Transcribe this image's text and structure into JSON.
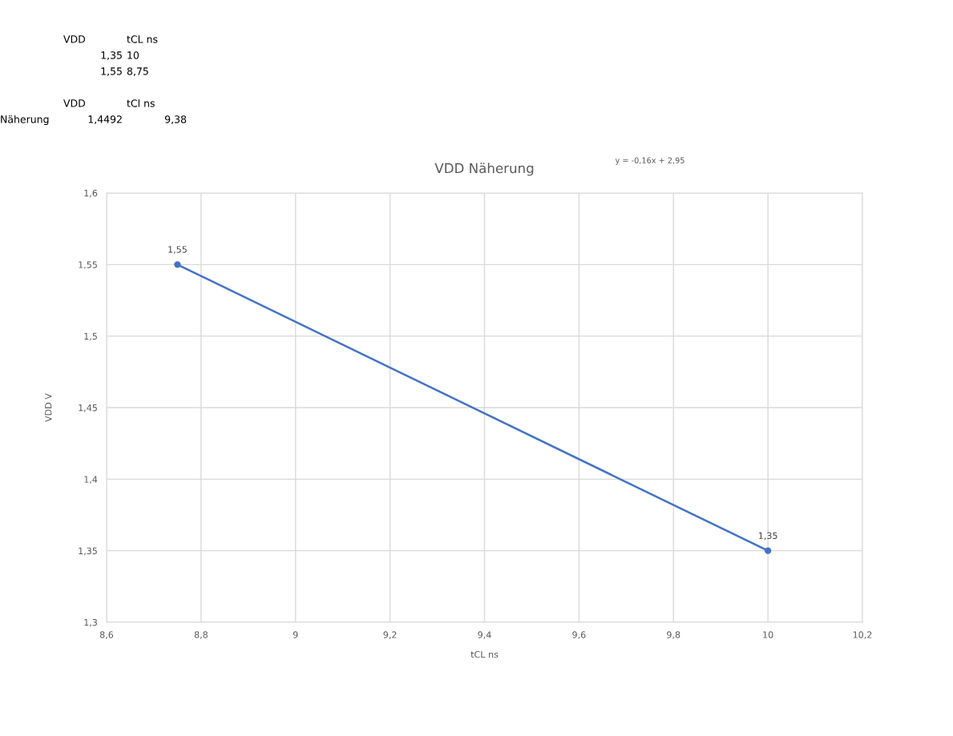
{
  "chart_data": {
    "type": "line",
    "title": "VDD Näherung",
    "xlabel": "tCL ns",
    "ylabel": "VDD V",
    "x": [
      10,
      8.75
    ],
    "series": [
      {
        "color": "#4472c4",
        "values": [
          1.35,
          1.55
        ],
        "value_labels": [
          "1,35",
          "1,55"
        ]
      }
    ],
    "xlim": [
      8.6,
      10.2
    ],
    "xticks": [
      {
        "value": 8.6,
        "label": "8,6"
      },
      {
        "value": 8.8,
        "label": "8,8"
      },
      9,
      {
        "value": 9.2,
        "label": "9,2"
      },
      {
        "value": 9.4,
        "label": "9,4"
      },
      {
        "value": 9.6,
        "label": "9,6"
      },
      {
        "value": 9.8,
        "label": "9,8"
      },
      10,
      {
        "value": 10.2,
        "label": "10,2"
      }
    ],
    "ylim": [
      1.3,
      1.6
    ],
    "yticks": [
      {
        "value": 1.3,
        "label": "1,3"
      },
      {
        "value": 1.35,
        "label": "1,35"
      },
      {
        "value": 1.4,
        "label": "1,4"
      },
      {
        "value": 1.45,
        "label": "1,45"
      },
      {
        "value": 1.5,
        "label": "1,5"
      },
      {
        "value": 1.55,
        "label": "1,55"
      },
      {
        "value": 1.6,
        "label": "1,6"
      }
    ],
    "grid": true,
    "marker": "circle",
    "line_style": "solid",
    "annotations": [
      "VDD",
      "tCL ns",
      "1,35",
      "10",
      "1,55",
      "8,75",
      "VDD",
      "tCl ns",
      "Näherung",
      "1,4492",
      "9,38",
      "y = -0,16x + 2,95"
    ]
  }
}
